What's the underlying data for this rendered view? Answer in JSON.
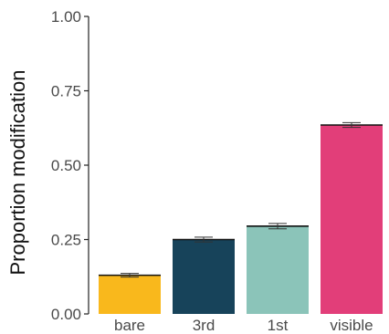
{
  "chart_data": {
    "type": "bar",
    "title": "",
    "xlabel": "",
    "ylabel": "Proportion modification",
    "ylim": [
      0,
      1
    ],
    "y_ticks": [
      0,
      0.25,
      0.5,
      0.75,
      1
    ],
    "y_tick_labels": [
      "0.00",
      "0.25",
      "0.50",
      "0.75",
      "1.00"
    ],
    "categories": [
      "bare",
      "3rd",
      "1st",
      "visible"
    ],
    "values": [
      0.13,
      0.25,
      0.295,
      0.635
    ],
    "error": [
      0.006,
      0.008,
      0.009,
      0.008
    ],
    "colors": [
      "#F9B81C",
      "#17435A",
      "#8BC4B9",
      "#E23E79"
    ],
    "grid": false,
    "legend": "none"
  }
}
